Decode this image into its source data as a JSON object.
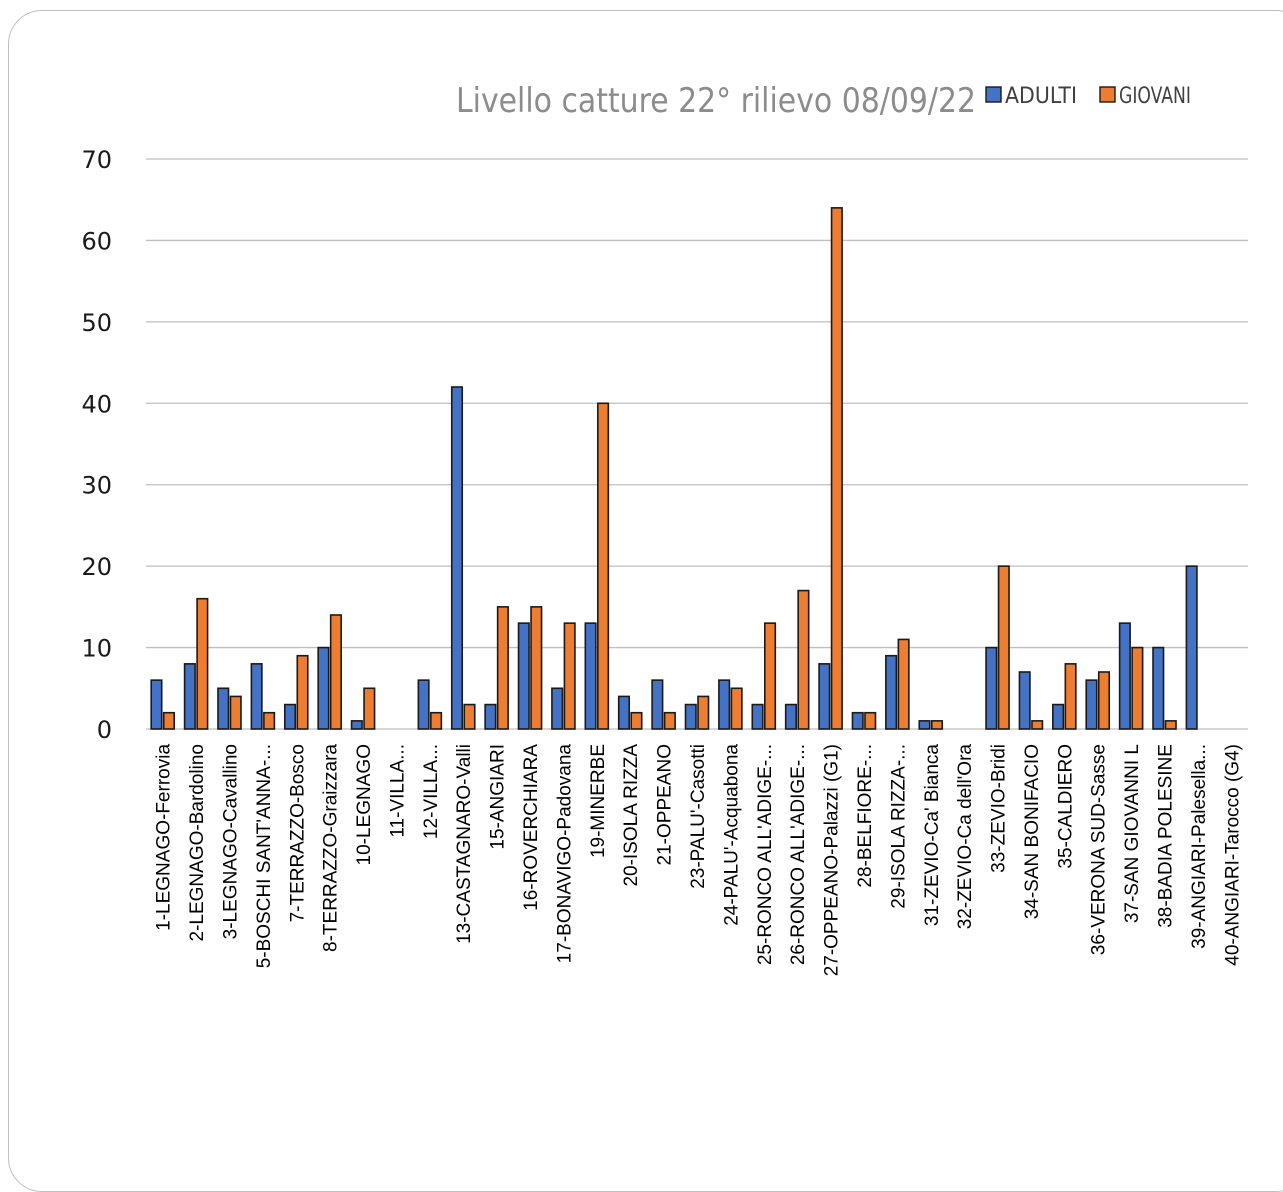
{
  "chart_data": {
    "type": "bar",
    "title": "Livello catture 22° rilievo 08/09/22",
    "ylim": [
      0,
      70
    ],
    "yticks": [
      0,
      10,
      20,
      30,
      40,
      50,
      60,
      70
    ],
    "grid": true,
    "legend_position": "top-right",
    "categories": [
      "1-LEGNAGO-Ferrovia",
      "2-LEGNAGO-Bardolino",
      "3-LEGNAGO-Cavallino",
      "5-BOSCHI SANT'ANNA-...",
      "7-TERRAZZO-Bosco",
      "8-TERRAZZO-Graizzara",
      "10-LEGNAGO",
      "11-VILLA...",
      "12-VILLA...",
      "13-CASTAGNARO-Valli",
      "15-ANGIARI",
      "16-ROVERCHIARA",
      "17-BONAVIGO-Padovana",
      "19-MINERBE",
      "20-ISOLA RIZZA",
      "21-OPPEANO",
      "23-PALU'-Casotti",
      "24-PALU'-Acquabona",
      "25-RONCO ALL'ADIGE-...",
      "26-RONCO ALL'ADIGE-...",
      "27-OPPEANO-Palazzi (G1)",
      "28-BELFIORE-...",
      "29-ISOLA RIZZA-...",
      "31-ZEVIO-Ca' Bianca",
      "32-ZEVIO-Ca dell'Ora",
      "33-ZEVIO-Bridi",
      "34-SAN BONIFACIO",
      "35-CALDIERO",
      "36-VERONA SUD-Sasse",
      "37-SAN GIOVANNI L",
      "38-BADIA POLESINE",
      "39-ANGIARI-Palesella...",
      "40-ANGIARI-Tarocco (G4)"
    ],
    "series": [
      {
        "name": "ADULTI",
        "color": "#4472c4",
        "values": [
          6,
          8,
          5,
          8,
          3,
          10,
          1,
          0,
          6,
          42,
          3,
          13,
          5,
          13,
          4,
          6,
          3,
          6,
          3,
          3,
          8,
          2,
          9,
          1,
          0,
          10,
          7,
          3,
          6,
          13,
          10,
          20,
          0
        ]
      },
      {
        "name": "GIOVANI",
        "color": "#ed7d31",
        "values": [
          2,
          16,
          4,
          2,
          9,
          14,
          5,
          0,
          2,
          3,
          15,
          15,
          13,
          40,
          2,
          2,
          4,
          5,
          13,
          17,
          64,
          2,
          11,
          1,
          0,
          20,
          1,
          8,
          7,
          10,
          1,
          0,
          0
        ]
      }
    ]
  }
}
